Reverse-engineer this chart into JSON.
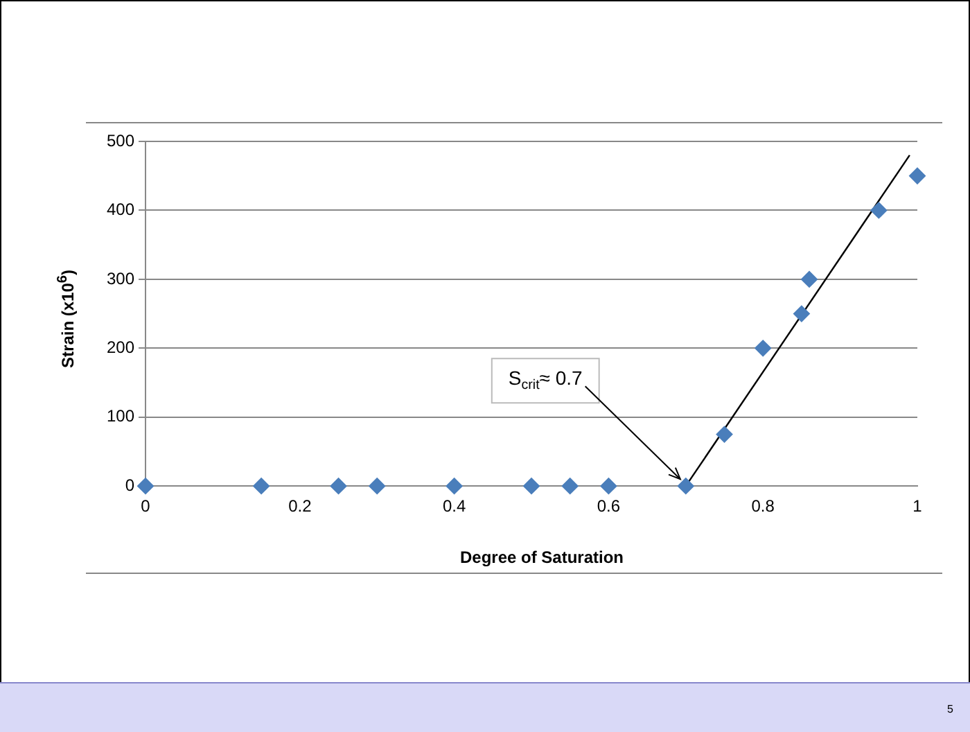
{
  "chart_data": {
    "type": "scatter",
    "xlabel": "Degree of Saturation",
    "ylabel": "Strain (x10$^{6}$)",
    "xlim": [
      0,
      1
    ],
    "xticks": [
      0,
      0.2,
      0.4,
      0.6,
      0.8,
      1
    ],
    "ylim": [
      0,
      500
    ],
    "yticks": [
      0,
      100,
      200,
      300,
      400,
      500
    ],
    "grid": "y",
    "legend": false,
    "series": [
      {
        "type": "scatter",
        "color": "#4a7ebb",
        "marker": "diamond",
        "x": [
          0,
          0.15,
          0.25,
          0.3,
          0.4,
          0.5,
          0.55,
          0.6,
          0.7,
          0.75,
          0.8,
          0.85,
          0.86,
          0.95,
          1
        ],
        "values": [
          0,
          0,
          0,
          0,
          0,
          0,
          0,
          0,
          0,
          75,
          200,
          250,
          300,
          400,
          450
        ]
      },
      {
        "type": "line",
        "color": "#000000",
        "marker": "none",
        "x": [
          0.7,
          0.99
        ],
        "values": [
          0,
          480
        ]
      }
    ],
    "annotations": [
      {
        "text": "S$_{crit}$≈ 0.7",
        "x": 0.7,
        "y": 0
      },
      "5"
    ]
  }
}
